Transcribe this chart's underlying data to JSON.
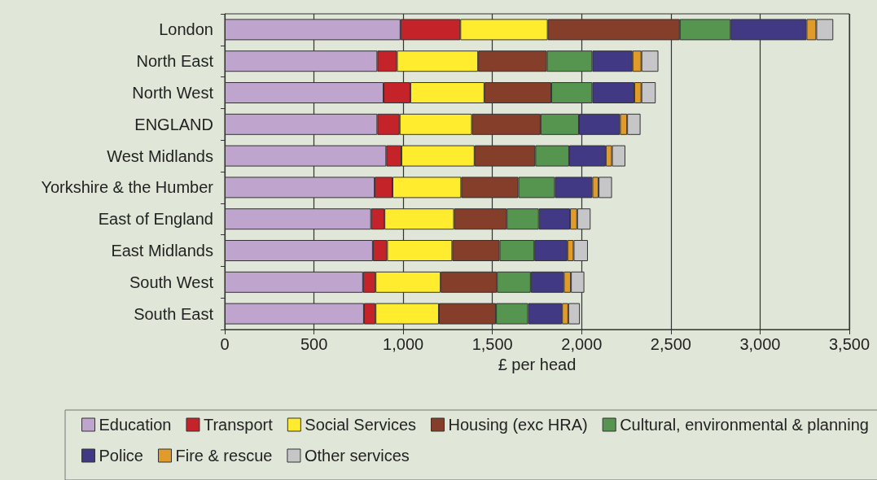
{
  "chart_data": {
    "type": "bar",
    "orientation": "horizontal",
    "stacked": true,
    "xlabel": "£ per head",
    "categories": [
      "London",
      "North East",
      "North West",
      "ENGLAND",
      "West Midlands",
      "Yorkshire & the Humber",
      "East of England",
      "East Midlands",
      "South West",
      "South East"
    ],
    "series": [
      {
        "name": "Education",
        "color": "#bfa5cd",
        "values": [
          985,
          855,
          890,
          855,
          905,
          840,
          820,
          830,
          775,
          780
        ]
      },
      {
        "name": "Transport",
        "color": "#c4232a",
        "values": [
          335,
          110,
          150,
          125,
          85,
          100,
          75,
          80,
          70,
          65
        ]
      },
      {
        "name": "Social Services",
        "color": "#ffec2f",
        "values": [
          490,
          455,
          415,
          405,
          410,
          385,
          390,
          365,
          365,
          355
        ]
      },
      {
        "name": "Housing (exc HRA)",
        "color": "#853e2a",
        "values": [
          740,
          385,
          375,
          385,
          340,
          320,
          295,
          265,
          315,
          320
        ]
      },
      {
        "name": "Cultural, environmental & planning",
        "color": "#56954f",
        "values": [
          285,
          255,
          230,
          215,
          190,
          205,
          180,
          195,
          190,
          180
        ]
      },
      {
        "name": "Police",
        "color": "#413983",
        "values": [
          425,
          225,
          235,
          230,
          205,
          210,
          175,
          185,
          185,
          190
        ]
      },
      {
        "name": "Fire & rescue",
        "color": "#e19b2a",
        "values": [
          55,
          50,
          40,
          40,
          35,
          35,
          40,
          35,
          40,
          35
        ]
      },
      {
        "name": "Other services",
        "color": "#c6c6c8",
        "values": [
          95,
          95,
          80,
          75,
          75,
          75,
          75,
          80,
          75,
          65
        ]
      }
    ],
    "xlim": [
      0,
      3500
    ],
    "xticks": [
      0,
      500,
      {
        "value": 1000,
        "label": "1,000"
      },
      {
        "value": 1500,
        "label": "1,500"
      },
      {
        "value": 2000,
        "label": "2,000"
      },
      {
        "value": 2500,
        "label": "2,500"
      },
      {
        "value": 3000,
        "label": "3,000"
      },
      {
        "value": 3500,
        "label": "3,500"
      }
    ],
    "grid": "x",
    "legend": "bottom"
  }
}
